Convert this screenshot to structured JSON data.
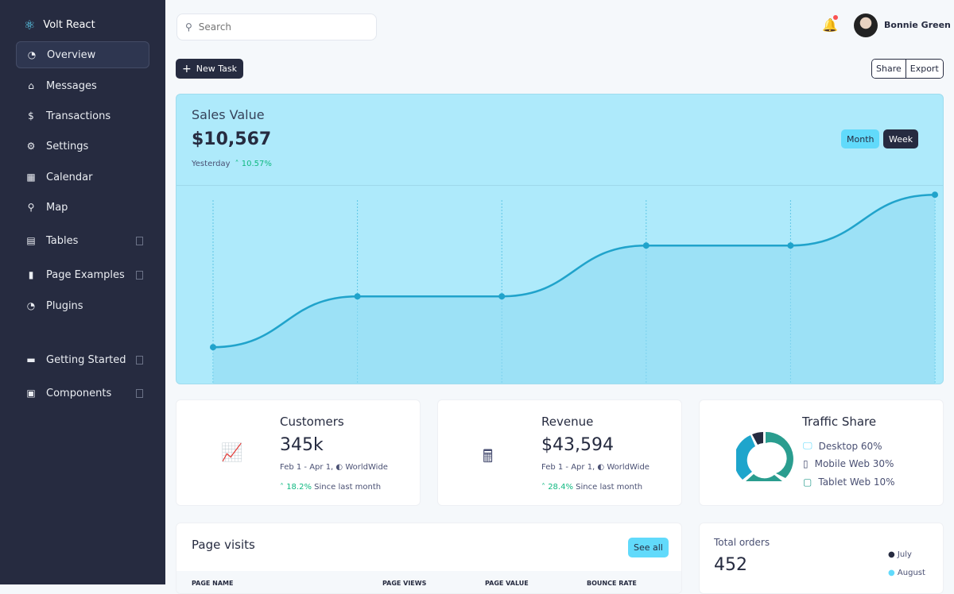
{
  "brand": {
    "name": "Volt React",
    "icon": "react-icon"
  },
  "sidebar": {
    "items": [
      {
        "label": "Overview",
        "icon": "chart-pie-icon",
        "active": true
      },
      {
        "label": "Messages",
        "icon": "inbox-icon"
      },
      {
        "label": "Transactions",
        "icon": "hand-dollar-icon"
      },
      {
        "label": "Settings",
        "icon": "cog-icon"
      },
      {
        "label": "Calendar",
        "icon": "calendar-icon"
      },
      {
        "label": "Map",
        "icon": "map-pin-icon"
      },
      {
        "label": "Tables",
        "icon": "table-icon",
        "badge": true
      },
      {
        "label": "Page Examples",
        "icon": "file-icon",
        "badge": true
      },
      {
        "label": "Plugins",
        "icon": "chart-pie-icon"
      },
      {
        "label": "Getting Started",
        "icon": "book-icon",
        "badge": true
      },
      {
        "label": "Components",
        "icon": "box-icon",
        "badge": true
      }
    ]
  },
  "header": {
    "search_placeholder": "Search",
    "user_name": "Bonnie Green"
  },
  "toolbar": {
    "new_task": "New Task",
    "share": "Share",
    "export": "Export"
  },
  "sales": {
    "title": "Sales Value",
    "value": "$10,567",
    "period": "Yesterday",
    "change": "10.57%",
    "month": "Month",
    "week": "Week"
  },
  "chart_data": {
    "type": "area",
    "series": [
      {
        "values": [
          1,
          2,
          2,
          3,
          3,
          4
        ]
      }
    ],
    "ylim": [
      0.3,
      4.05
    ],
    "grid": "vertical",
    "colors": {
      "line": "#20a3cb",
      "fill": "#8fdaf3"
    }
  },
  "customers": {
    "title": "Customers",
    "value": "345k",
    "range": "Feb 1 - Apr 1,",
    "region": "WorldWide",
    "change": "18.2%",
    "since": "Since last month"
  },
  "revenue": {
    "title": "Revenue",
    "value": "$43,594",
    "range": "Feb 1 - Apr 1,",
    "region": "WorldWide",
    "change": "28.4%",
    "since": "Since last month"
  },
  "traffic": {
    "title": "Traffic Share",
    "items": [
      {
        "label": "Desktop 60%",
        "value": 60,
        "color": "#1ea5cc"
      },
      {
        "label": "Mobile Web 30%",
        "value": 30,
        "color": "#262b40"
      },
      {
        "label": "Tablet Web 10%",
        "value": 10,
        "color": "#2a9d8f"
      }
    ]
  },
  "page_visits": {
    "title": "Page visits",
    "see_all": "See all",
    "columns": [
      "PAGE NAME",
      "PAGE VIEWS",
      "PAGE VALUE",
      "BOUNCE RATE"
    ]
  },
  "orders": {
    "title": "Total orders",
    "value": "452",
    "legend": [
      "July",
      "August"
    ]
  }
}
